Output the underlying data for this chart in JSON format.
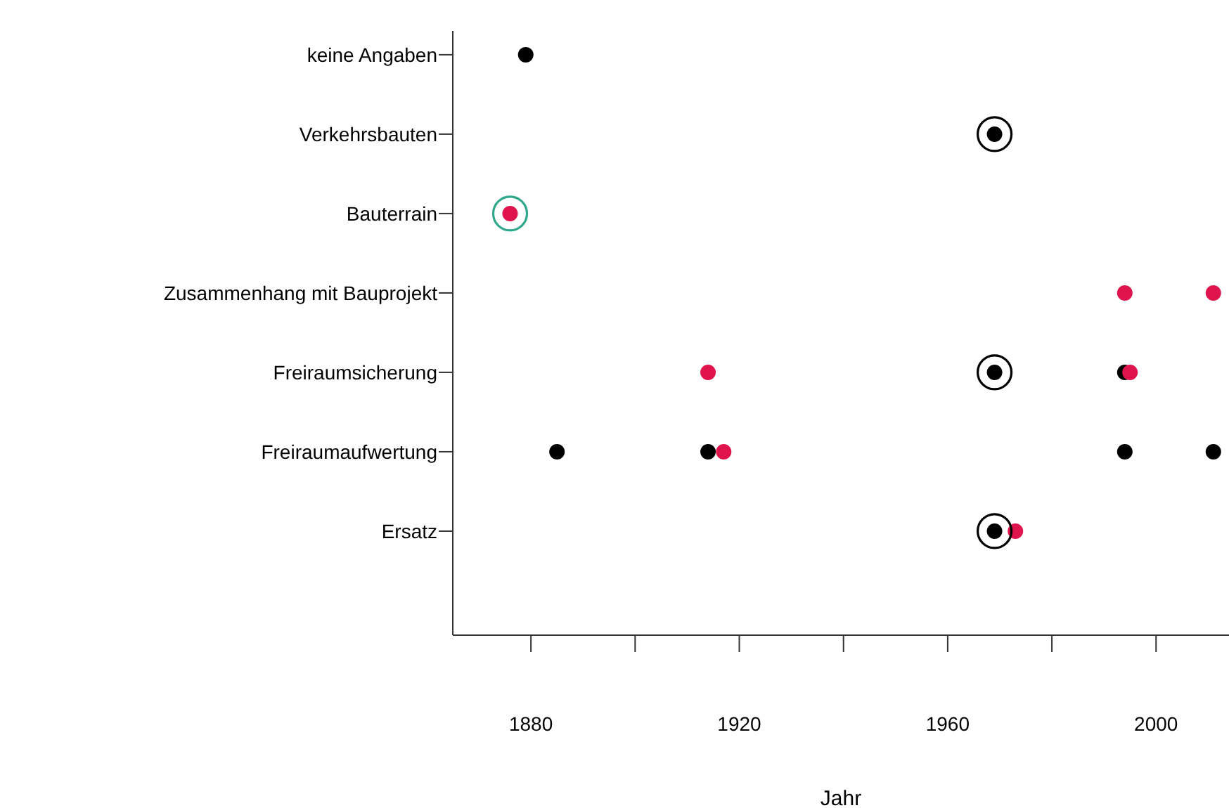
{
  "chart_data": {
    "type": "scatter",
    "xlabel": "Jahr",
    "categories": [
      "keine Angaben",
      "Verkehrsbauten",
      "Bauterrain",
      "Zusammenhang mit Bauprojekt",
      "Freiraumsicherung",
      "Freiraumaufwertung",
      "Ersatz"
    ],
    "orientation": "horizontal",
    "xlim": [
      1865,
      2014
    ],
    "xticks": [
      1880,
      {
        "value": 1900,
        "label": null
      },
      1920,
      {
        "value": 1940,
        "label": null
      },
      1960,
      {
        "value": 1980,
        "label": null
      },
      2000
    ],
    "grid": false,
    "legend": false,
    "series": [
      {
        "color": "#000000",
        "marker": "circle",
        "values": [
          1879,
          1969,
          null,
          null,
          1969,
          1885,
          1969
        ]
      },
      {
        "color": "#000000",
        "marker": "circle",
        "values": [
          null,
          null,
          null,
          null,
          1994,
          1914,
          null
        ]
      },
      {
        "color": "#000000",
        "marker": "circle",
        "values": [
          null,
          null,
          null,
          null,
          null,
          1994,
          null
        ]
      },
      {
        "color": "#000000",
        "marker": "circle",
        "values": [
          null,
          null,
          null,
          null,
          null,
          2011,
          null
        ]
      },
      {
        "color": "#e0144c",
        "marker": "circle",
        "values": [
          null,
          null,
          1876,
          1994,
          1914,
          1917,
          1973
        ]
      },
      {
        "color": "#e0144c",
        "marker": "circle",
        "values": [
          null,
          null,
          null,
          2011,
          1995,
          null,
          null
        ]
      },
      {
        "type": "bubble",
        "colors": [
          null,
          "#000000",
          "#2fa88c",
          null,
          "#000000",
          null,
          "#000000"
        ],
        "marker": "circle",
        "values": [
          null,
          1969,
          1876,
          null,
          1969,
          null,
          1969
        ],
        "sizes": [
          null,
          1,
          1,
          null,
          1,
          null,
          1
        ]
      }
    ]
  }
}
